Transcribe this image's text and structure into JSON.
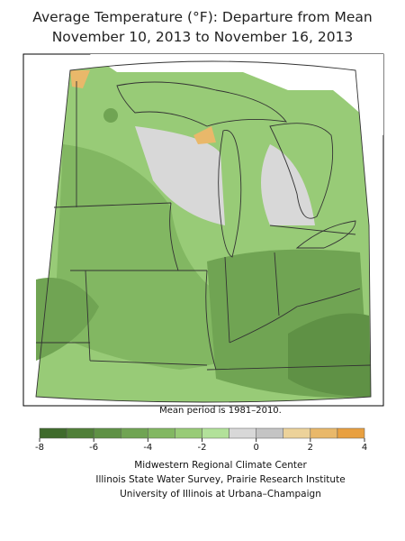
{
  "title": [
    "Average Temperature (°F): Departure from Mean",
    "November 10, 2013 to November 16, 2013"
  ],
  "note": "Mean period is 1981–2010.",
  "legend": {
    "range": [
      -8,
      4
    ],
    "ticks": [
      -8,
      -6,
      -4,
      -2,
      0,
      2,
      4
    ],
    "colors": [
      "#3f6b2c",
      "#507f38",
      "#5f9145",
      "#70a453",
      "#82b762",
      "#98cb77",
      "#b2e19a",
      "#d8d8d8",
      "#c4c4c4",
      "#ecd29a",
      "#e9b86a",
      "#e8a040"
    ]
  },
  "credits": [
    "Midwestern Regional Climate Center",
    "Illinois State Water Survey, Prairie Research Institute",
    "University of Illinois at Urbana–Champaign"
  ]
}
